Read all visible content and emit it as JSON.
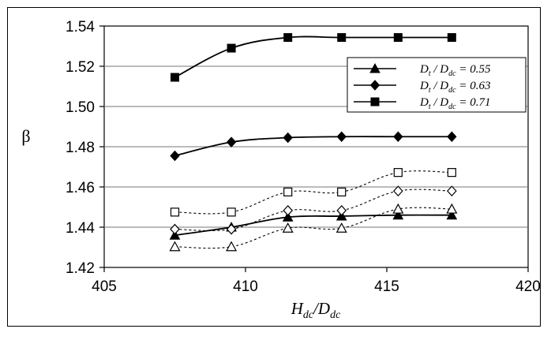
{
  "chart_data": {
    "type": "line",
    "title": "",
    "xlabel": {
      "main": "H",
      "main_sub": "dc",
      "slash": "/",
      "den": "D",
      "den_sub": "dc"
    },
    "ylabel": "β",
    "xlim": [
      405,
      420
    ],
    "ylim": [
      1.42,
      1.54
    ],
    "xticks": [
      405,
      410,
      415,
      420
    ],
    "yticks": [
      1.42,
      1.44,
      1.46,
      1.48,
      1.5,
      1.52,
      1.54
    ],
    "xtick_labels": [
      "405",
      "410",
      "415",
      "420"
    ],
    "ytick_labels": [
      "1.42",
      "1.44",
      "1.46",
      "1.48",
      "1.50",
      "1.52",
      "1.54"
    ],
    "grid": {
      "horizontal": true,
      "vertical": false
    },
    "legend_position": "top-right",
    "x": [
      407.5,
      409.5,
      411.5,
      413.4,
      415.4,
      417.3
    ],
    "series": [
      {
        "name": "Dt / Ddc = 0.55",
        "legend": {
          "main": "D",
          "main_sub": "t",
          "slash": " / ",
          "den": "D",
          "den_sub": "dc",
          "eq": " = 0.55"
        },
        "marker": "triangle",
        "filled": true,
        "line": "solid",
        "values": [
          1.436,
          1.44,
          1.445,
          1.4455,
          1.446,
          1.446
        ]
      },
      {
        "name": "Dt / Ddc = 0.63",
        "legend": {
          "main": "D",
          "main_sub": "t",
          "slash": " / ",
          "den": "D",
          "den_sub": "dc",
          "eq": " = 0.63"
        },
        "marker": "diamond",
        "filled": true,
        "line": "solid",
        "values": [
          1.4755,
          1.4823,
          1.4845,
          1.485,
          1.485,
          1.485
        ]
      },
      {
        "name": "Dt / Ddc = 0.71",
        "legend": {
          "main": "D",
          "main_sub": "t",
          "slash": " / ",
          "den": "D",
          "den_sub": "dc",
          "eq": " = 0.71"
        },
        "marker": "square",
        "filled": true,
        "line": "solid",
        "values": [
          1.5145,
          1.529,
          1.5343,
          1.5343,
          1.5343,
          1.5343
        ]
      },
      {
        "marker": "square",
        "filled": false,
        "line": "dashed",
        "values": [
          1.4475,
          1.4475,
          1.4575,
          1.4575,
          1.4672,
          1.4672
        ]
      },
      {
        "marker": "diamond",
        "filled": false,
        "line": "dashed",
        "values": [
          1.439,
          1.439,
          1.4483,
          1.4483,
          1.458,
          1.458
        ]
      },
      {
        "marker": "triangle",
        "filled": false,
        "line": "dashed",
        "values": [
          1.4303,
          1.4303,
          1.4395,
          1.4395,
          1.449,
          1.449
        ]
      }
    ]
  }
}
